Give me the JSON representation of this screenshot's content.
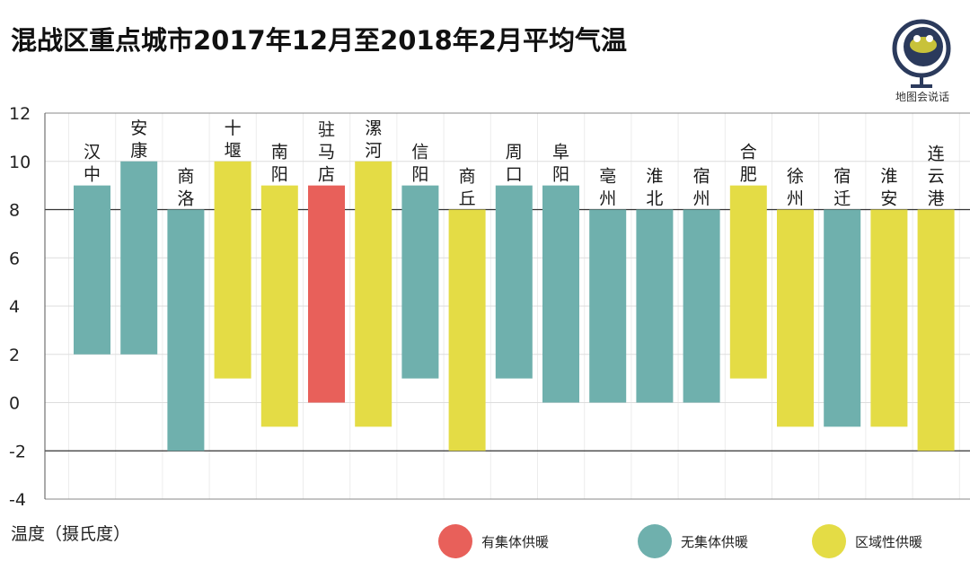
{
  "title": "混战区重点城市2017年12月至2018年2月平均气温",
  "logo": {
    "text": "地图会说话"
  },
  "colors": {
    "有集体供暖": "#e8605a",
    "无集体供暖": "#6fb0ad",
    "区域性供暖": "#e4dc45",
    "grid": "#333333",
    "axis": "#555555"
  },
  "legend": [
    {
      "label": "有集体供暖",
      "color": "#e8605a"
    },
    {
      "label": "无集体供暖",
      "color": "#6fb0ad"
    },
    {
      "label": "区域性供暖",
      "color": "#e4dc45"
    }
  ],
  "chart_data": {
    "type": "bar",
    "title": "混战区重点城市2017年12月至2018年2月平均气温",
    "ylabel": "温度（摄氏度）",
    "xlabel": "",
    "ylim": [
      -4,
      12
    ],
    "yticks": [
      12,
      10,
      8,
      6,
      4,
      2,
      0,
      -2,
      -4
    ],
    "grid": "horizontal major lines at 8 and -2",
    "legend_position": "bottom",
    "bar_kind": "floating range (min to max)",
    "categories": [
      "汉中",
      "安康",
      "商洛",
      "十堰",
      "南阳",
      "驻马店",
      "漯河",
      "信阳",
      "商丘",
      "周口",
      "阜阳",
      "亳州",
      "淮北",
      "宿州",
      "合肥",
      "徐州",
      "宿迁",
      "淮安",
      "连云港"
    ],
    "ranges": [
      [
        2,
        9
      ],
      [
        2,
        10
      ],
      [
        -2,
        8
      ],
      [
        1,
        10
      ],
      [
        -1,
        9
      ],
      [
        0,
        9
      ],
      [
        -1,
        10
      ],
      [
        1,
        9
      ],
      [
        -2,
        8
      ],
      [
        1,
        9
      ],
      [
        0,
        9
      ],
      [
        0,
        8
      ],
      [
        0,
        8
      ],
      [
        0,
        8
      ],
      [
        1,
        9
      ],
      [
        -1,
        8
      ],
      [
        -1,
        8
      ],
      [
        -1,
        8
      ],
      [
        -2,
        8
      ]
    ],
    "heating_type": [
      "无集体供暖",
      "无集体供暖",
      "无集体供暖",
      "区域性供暖",
      "区域性供暖",
      "有集体供暖",
      "区域性供暖",
      "无集体供暖",
      "区域性供暖",
      "无集体供暖",
      "无集体供暖",
      "无集体供暖",
      "无集体供暖",
      "无集体供暖",
      "区域性供暖",
      "区域性供暖",
      "无集体供暖",
      "区域性供暖",
      "区域性供暖"
    ]
  }
}
